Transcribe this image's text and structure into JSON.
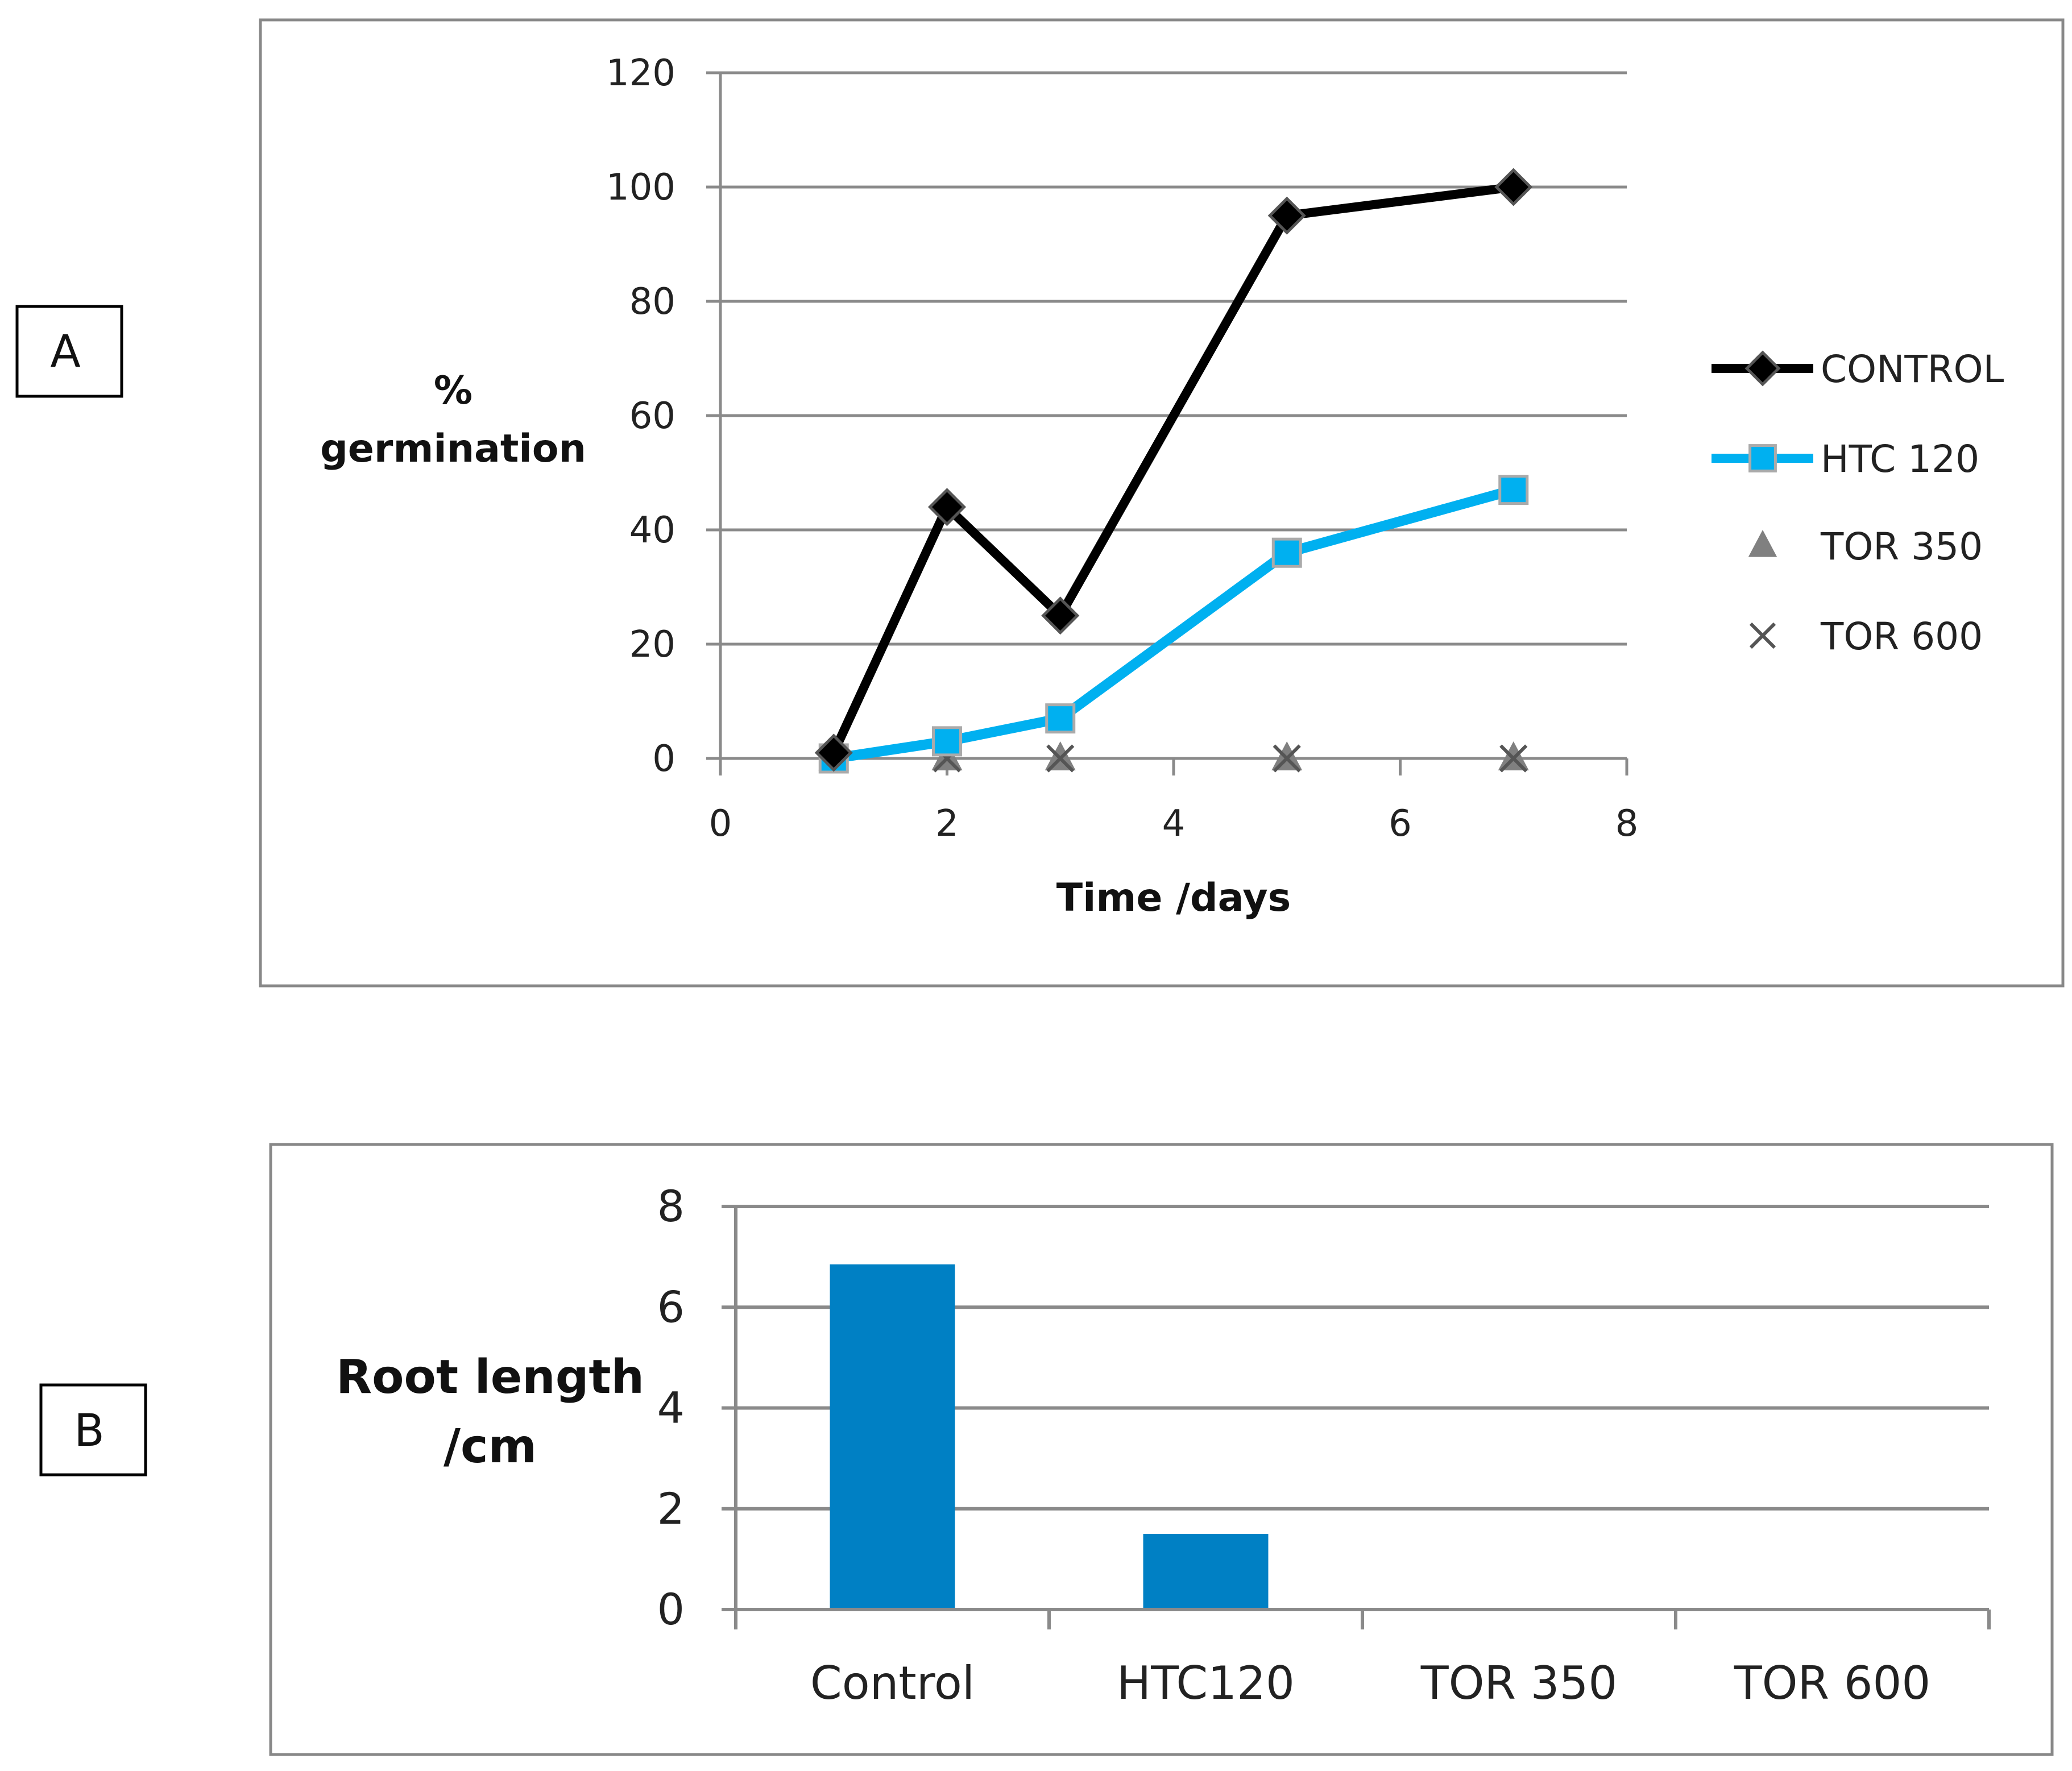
{
  "panels": [
    "A",
    "B"
  ],
  "chart_data": [
    {
      "type": "line",
      "ylabel_line1": "%",
      "ylabel_line2": "germination",
      "xlabel": "Time /days",
      "xlim": [
        0,
        8
      ],
      "ylim": [
        0,
        120
      ],
      "xticks": [
        0,
        2,
        4,
        6,
        8
      ],
      "yticks": [
        0,
        20,
        40,
        60,
        80,
        100,
        120
      ],
      "grid": true,
      "legend_position": "right",
      "series": [
        {
          "name": "CONTROL",
          "color": "#000000",
          "marker": "diamond",
          "line": true,
          "x": [
            1,
            2,
            3,
            5,
            7
          ],
          "y": [
            1,
            44,
            25,
            95,
            100
          ]
        },
        {
          "name": "HTC 120",
          "color": "#00B0F0",
          "marker": "square",
          "line": true,
          "x": [
            1,
            2,
            3,
            5,
            7
          ],
          "y": [
            0,
            3,
            7,
            36,
            47
          ]
        },
        {
          "name": "TOR 350",
          "color": "#808080",
          "marker": "triangle",
          "line": false,
          "x": [
            1,
            2,
            3,
            5,
            7
          ],
          "y": [
            0,
            0,
            0,
            0,
            0
          ]
        },
        {
          "name": "TOR 600",
          "color": "#555555",
          "marker": "x",
          "line": false,
          "x": [
            1,
            2,
            3,
            5,
            7
          ],
          "y": [
            0,
            0,
            0,
            0,
            0
          ]
        }
      ]
    },
    {
      "type": "bar",
      "ylabel_line1": "Root length",
      "ylabel_line2": "/cm",
      "categories": [
        "Control",
        "HTC120",
        "TOR 350",
        "TOR 600"
      ],
      "values": [
        6.85,
        1.5,
        0,
        0
      ],
      "ylim": [
        0,
        8
      ],
      "yticks": [
        0,
        2,
        4,
        6,
        8
      ],
      "grid": true,
      "color": "#0080C4"
    }
  ]
}
